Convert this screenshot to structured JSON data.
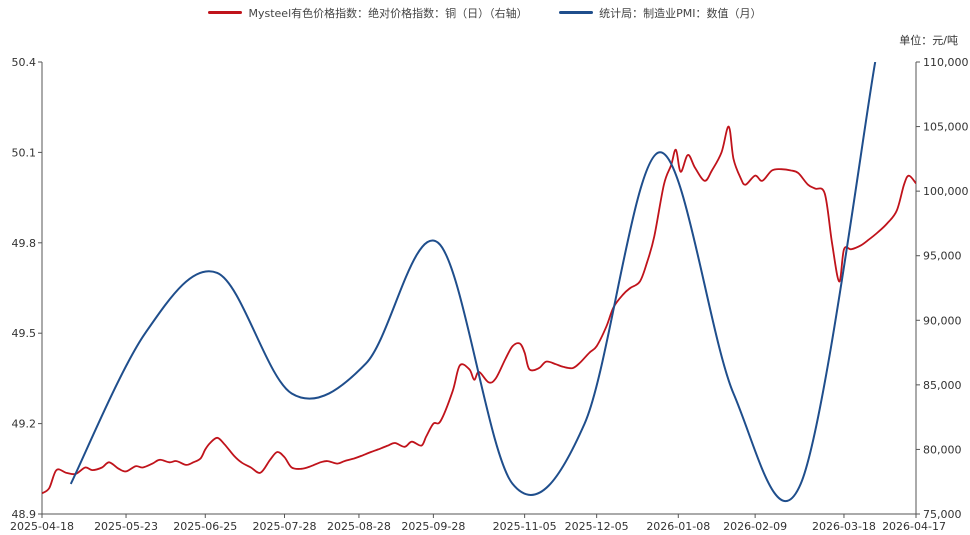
{
  "chart_data": {
    "type": "line",
    "legend_position": "top-center",
    "unit": "单位：元/吨",
    "x_ticks": [
      "2025-04-18",
      "2025-05-23",
      "2025-06-25",
      "2025-07-28",
      "2025-08-28",
      "2025-09-28",
      "2025-11-05",
      "2025-12-05",
      "2026-01-08",
      "2026-02-09",
      "2026-03-18",
      "2026-04-17"
    ],
    "left_axis": {
      "min": 48.9,
      "max": 50.4,
      "ticks": [
        "48.9",
        "49.2",
        "49.5",
        "49.8",
        "50.1",
        "50.4"
      ]
    },
    "right_axis": {
      "min": 75000,
      "max": 110000,
      "ticks": [
        "75,000",
        "80,000",
        "85,000",
        "90,000",
        "95,000",
        "100,000",
        "105,000",
        "110,000"
      ]
    },
    "colors": {
      "copper": "#c0131b",
      "pmi": "#1f4e8c"
    },
    "series": [
      {
        "name": "Mysteel有色价格指数：绝对价格指数：铜（日）（右轴）",
        "axis": "right",
        "points": [
          [
            "2025-04-18",
            76600
          ],
          [
            "2025-04-21",
            77000
          ],
          [
            "2025-04-24",
            78400
          ],
          [
            "2025-04-28",
            78200
          ],
          [
            "2025-05-02",
            78100
          ],
          [
            "2025-05-06",
            78600
          ],
          [
            "2025-05-09",
            78400
          ],
          [
            "2025-05-13",
            78600
          ],
          [
            "2025-05-16",
            79000
          ],
          [
            "2025-05-20",
            78500
          ],
          [
            "2025-05-23",
            78300
          ],
          [
            "2025-05-27",
            78700
          ],
          [
            "2025-05-30",
            78600
          ],
          [
            "2025-06-03",
            78900
          ],
          [
            "2025-06-06",
            79200
          ],
          [
            "2025-06-10",
            79000
          ],
          [
            "2025-06-13",
            79100
          ],
          [
            "2025-06-17",
            78800
          ],
          [
            "2025-06-20",
            79000
          ],
          [
            "2025-06-23",
            79300
          ],
          [
            "2025-06-25",
            80000
          ],
          [
            "2025-06-27",
            80500
          ],
          [
            "2025-06-30",
            80900
          ],
          [
            "2025-07-03",
            80400
          ],
          [
            "2025-07-07",
            79500
          ],
          [
            "2025-07-10",
            79000
          ],
          [
            "2025-07-14",
            78600
          ],
          [
            "2025-07-18",
            78200
          ],
          [
            "2025-07-22",
            79200
          ],
          [
            "2025-07-25",
            79800
          ],
          [
            "2025-07-28",
            79400
          ],
          [
            "2025-07-31",
            78600
          ],
          [
            "2025-08-04",
            78500
          ],
          [
            "2025-08-08",
            78700
          ],
          [
            "2025-08-12",
            79000
          ],
          [
            "2025-08-15",
            79100
          ],
          [
            "2025-08-19",
            78900
          ],
          [
            "2025-08-22",
            79100
          ],
          [
            "2025-08-26",
            79300
          ],
          [
            "2025-08-29",
            79500
          ],
          [
            "2025-09-02",
            79800
          ],
          [
            "2025-09-05",
            80000
          ],
          [
            "2025-09-09",
            80300
          ],
          [
            "2025-09-12",
            80500
          ],
          [
            "2025-09-16",
            80200
          ],
          [
            "2025-09-19",
            80600
          ],
          [
            "2025-09-23",
            80300
          ],
          [
            "2025-09-25",
            81000
          ],
          [
            "2025-09-28",
            82000
          ],
          [
            "2025-10-01",
            82200
          ],
          [
            "2025-10-06",
            84500
          ],
          [
            "2025-10-09",
            86500
          ],
          [
            "2025-10-13",
            86200
          ],
          [
            "2025-10-15",
            85400
          ],
          [
            "2025-10-17",
            86000
          ],
          [
            "2025-10-21",
            85200
          ],
          [
            "2025-10-24",
            85500
          ],
          [
            "2025-10-28",
            87000
          ],
          [
            "2025-10-31",
            88000
          ],
          [
            "2025-11-03",
            88200
          ],
          [
            "2025-11-05",
            87500
          ],
          [
            "2025-11-07",
            86200
          ],
          [
            "2025-11-11",
            86300
          ],
          [
            "2025-11-14",
            86800
          ],
          [
            "2025-11-18",
            86600
          ],
          [
            "2025-11-21",
            86400
          ],
          [
            "2025-11-25",
            86300
          ],
          [
            "2025-11-28",
            86700
          ],
          [
            "2025-12-02",
            87500
          ],
          [
            "2025-12-05",
            88000
          ],
          [
            "2025-12-09",
            89500
          ],
          [
            "2025-12-12",
            91000
          ],
          [
            "2025-12-16",
            92000
          ],
          [
            "2025-12-19",
            92500
          ],
          [
            "2025-12-23",
            93000
          ],
          [
            "2025-12-26",
            94500
          ],
          [
            "2025-12-29",
            96500
          ],
          [
            "2026-01-02",
            100500
          ],
          [
            "2026-01-05",
            102000
          ],
          [
            "2026-01-07",
            103200
          ],
          [
            "2026-01-09",
            101500
          ],
          [
            "2026-01-12",
            102800
          ],
          [
            "2026-01-15",
            101800
          ],
          [
            "2026-01-19",
            100800
          ],
          [
            "2026-01-22",
            101600
          ],
          [
            "2026-01-26",
            103000
          ],
          [
            "2026-01-29",
            105000
          ],
          [
            "2026-01-31",
            102500
          ],
          [
            "2026-02-03",
            101000
          ],
          [
            "2026-02-05",
            100500
          ],
          [
            "2026-02-09",
            101200
          ],
          [
            "2026-02-12",
            100800
          ],
          [
            "2026-02-16",
            101600
          ],
          [
            "2026-02-20",
            101700
          ],
          [
            "2026-02-24",
            101600
          ],
          [
            "2026-02-27",
            101400
          ],
          [
            "2026-03-03",
            100500
          ],
          [
            "2026-03-06",
            100200
          ],
          [
            "2026-03-10",
            99800
          ],
          [
            "2026-03-13",
            96000
          ],
          [
            "2026-03-16",
            93000
          ],
          [
            "2026-03-18",
            95500
          ],
          [
            "2026-03-21",
            95500
          ],
          [
            "2026-03-25",
            95800
          ],
          [
            "2026-03-28",
            96200
          ],
          [
            "2026-04-01",
            96800
          ],
          [
            "2026-04-05",
            97500
          ],
          [
            "2026-04-09",
            98500
          ],
          [
            "2026-04-12",
            100500
          ],
          [
            "2026-04-14",
            101200
          ],
          [
            "2026-04-17",
            100600
          ]
        ]
      },
      {
        "name": "统计局：制造业PMI：数值（月）",
        "axis": "left",
        "points": [
          [
            "2025-04-30",
            49.0
          ],
          [
            "2025-05-31",
            49.5
          ],
          [
            "2025-06-30",
            49.7
          ],
          [
            "2025-07-31",
            49.3
          ],
          [
            "2025-08-31",
            49.4
          ],
          [
            "2025-09-30",
            49.8
          ],
          [
            "2025-10-31",
            49.0
          ],
          [
            "2025-11-30",
            49.2
          ],
          [
            "2025-12-31",
            50.1
          ],
          [
            "2026-01-31",
            49.3
          ],
          [
            "2026-02-28",
            49.0
          ],
          [
            "2026-03-31",
            50.4
          ]
        ]
      }
    ]
  }
}
